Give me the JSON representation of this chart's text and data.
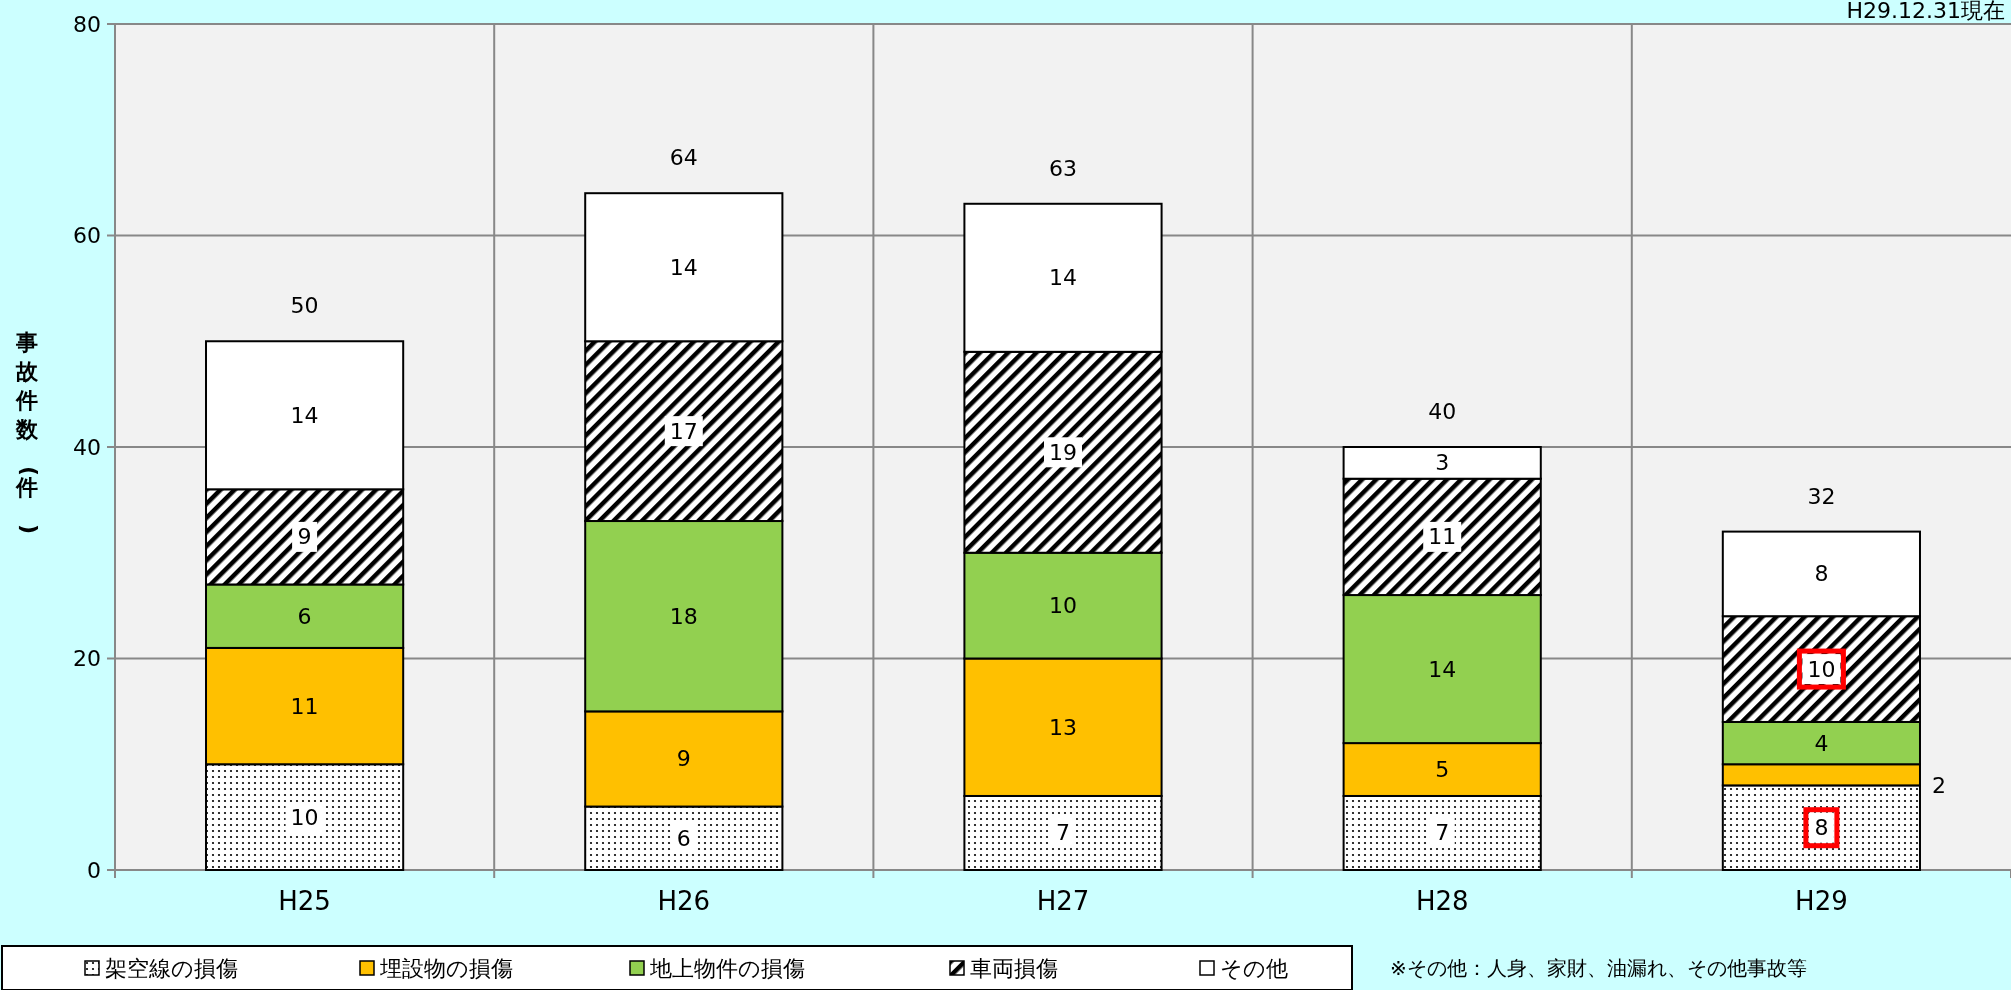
{
  "chart_data": {
    "type": "bar",
    "stacked": true,
    "ylabel": "事故件数(件)",
    "categories": [
      "H25",
      "H26",
      "H27",
      "H28",
      "H29"
    ],
    "series": [
      {
        "name": "架空線の損傷",
        "color": "#ffffff",
        "values": [
          10,
          6,
          7,
          7,
          8
        ]
      },
      {
        "name": "埋設物の損傷",
        "color": "#ffc000",
        "values": [
          11,
          9,
          13,
          5,
          2
        ]
      },
      {
        "name": "地上物件の損傷",
        "color": "#92d050",
        "values": [
          6,
          18,
          10,
          14,
          4
        ]
      },
      {
        "name": "車両損傷",
        "color": "#ffffff",
        "values": [
          9,
          17,
          19,
          11,
          10
        ]
      },
      {
        "name": "その他",
        "color": "#ffffff",
        "values": [
          14,
          14,
          14,
          3,
          8
        ]
      }
    ],
    "totals": [
      "50",
      "64",
      "63",
      "40",
      "32"
    ],
    "ylim": [
      0,
      80
    ],
    "yticks": [
      0,
      20,
      40,
      60,
      80
    ],
    "grid": true,
    "data_labels": true,
    "legend": "bottom",
    "annotations": [
      "H29.12.31現在",
      "※その他：人身、家財、油漏れ、その他事故等"
    ]
  }
}
